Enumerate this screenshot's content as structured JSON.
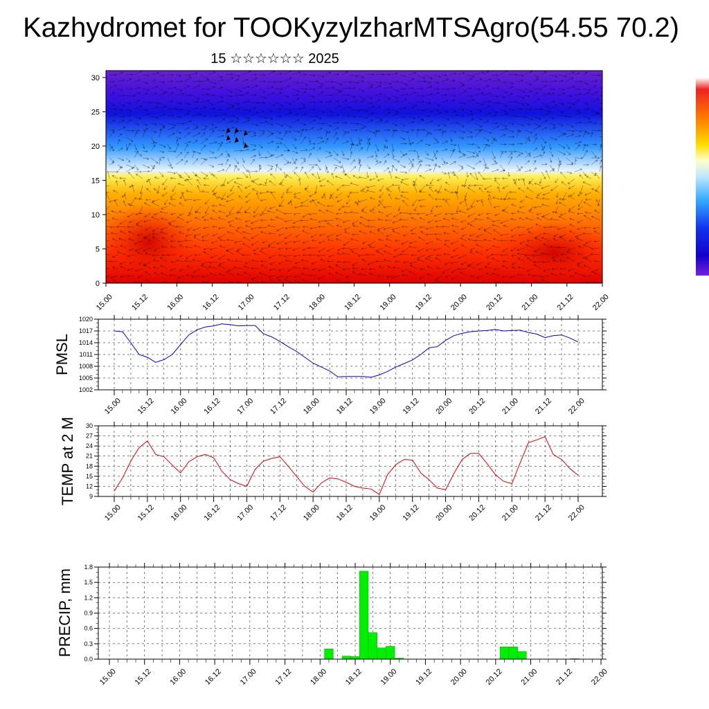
{
  "header": {
    "title": "Kazhydromet for TOOKyzylzharMTSAgro(54.55 70.2)",
    "date": "15 ☆☆☆☆☆☆ 2025"
  },
  "time_labels": [
    "15.00",
    "15.12",
    "16.00",
    "16.12",
    "17.00",
    "17.12",
    "18.00",
    "18.12",
    "19.00",
    "19.12",
    "20.00",
    "20.12",
    "21.00",
    "21.12",
    "22.00"
  ],
  "colors": {
    "pmsl_line": "#0000cc",
    "temp_line": "#e00000",
    "precip_bar": "#00ee00",
    "wind_arrows": "#000000"
  },
  "chart_data": [
    {
      "id": "wind-height-section",
      "type": "heatmap",
      "title": "",
      "xlabel": "",
      "ylabel": "",
      "y_ticks": [
        "0",
        "5",
        "10",
        "15",
        "20",
        "25",
        "30"
      ],
      "ylim": [
        0,
        31
      ],
      "x_categories": [
        "15.00",
        "15.12",
        "16.00",
        "16.12",
        "17.00",
        "17.12",
        "18.00",
        "18.12",
        "19.00",
        "19.12",
        "20.00",
        "20.12",
        "21.00",
        "21.12",
        "22.00"
      ],
      "colorbar": "red-orange-yellow-cyan-blue-purple, no tick labels",
      "overlay": "wind vectors"
    },
    {
      "id": "pmsl",
      "type": "line",
      "ylabel": "PMSL",
      "ylim": [
        1002,
        1020
      ],
      "y_ticks": [
        "1002",
        "1005",
        "1008",
        "1011",
        "1014",
        "1017",
        "1020"
      ],
      "x_step_hours": 3,
      "x_start": "15.00",
      "series": [
        {
          "values": [
            1017,
            1016.8,
            1014,
            1011,
            1010.3,
            1009,
            1009.7,
            1011,
            1013.5,
            1016,
            1017.3,
            1018,
            1018.3,
            1018.8,
            1018.6,
            1018.3,
            1018.4,
            1018.4,
            1016.3,
            1015.5,
            1014.3,
            1013,
            1011.8,
            1010.3,
            1008.8,
            1007.8,
            1006.8,
            1005.3,
            1005.4,
            1005.4,
            1005.4,
            1005.2,
            1005.8,
            1006.7,
            1007.8,
            1008.7,
            1009.6,
            1011,
            1012.7,
            1013,
            1014.6,
            1015.8,
            1016.4,
            1016.8,
            1017,
            1017.1,
            1017.4,
            1017,
            1017.1,
            1017.2,
            1016.6,
            1016.2,
            1015.3,
            1015.8,
            1016,
            1015.2,
            1014.2
          ]
        }
      ]
    },
    {
      "id": "temperature",
      "type": "line",
      "ylabel": "TEMP at 2 M",
      "ylim": [
        9,
        30
      ],
      "y_ticks": [
        "9",
        "12",
        "15",
        "18",
        "21",
        "24",
        "27",
        "30"
      ],
      "x_step_hours": 3,
      "x_start": "15.00",
      "series": [
        {
          "values": [
            10.6,
            14.5,
            19.5,
            23.5,
            25.5,
            21.5,
            20.8,
            18.3,
            16,
            19.3,
            20.8,
            21.5,
            20.5,
            16.5,
            14,
            12.8,
            12,
            17,
            19.5,
            20.3,
            20.8,
            18,
            15,
            12,
            10.3,
            13,
            14.5,
            14.2,
            13.2,
            12,
            11.5,
            11.2,
            9.6,
            15.5,
            18.5,
            20,
            19.8,
            16,
            14,
            11.5,
            11,
            15.8,
            20,
            21.8,
            21.8,
            18.8,
            15.5,
            13.5,
            12.8,
            19,
            25,
            25.8,
            26.8,
            21.5,
            20,
            17.3,
            15.3
          ]
        }
      ]
    },
    {
      "id": "precipitation",
      "type": "bar",
      "ylabel": "PRECIP, mm",
      "ylim": [
        0,
        1.8
      ],
      "y_ticks": [
        "0.0",
        "0.3",
        "0.6",
        "0.9",
        "1.2",
        "1.5",
        "1.8"
      ],
      "x_step_hours": 3,
      "x_start": "15.00",
      "series": [
        {
          "values": [
            0,
            0,
            0,
            0,
            0,
            0,
            0,
            0,
            0,
            0,
            0,
            0,
            0,
            0,
            0,
            0,
            0,
            0,
            0,
            0,
            0,
            0,
            0,
            0,
            0,
            0.2,
            0,
            0.06,
            0.05,
            1.72,
            0.52,
            0.22,
            0.25,
            0.02,
            0,
            0,
            0,
            0,
            0,
            0,
            0,
            0,
            0,
            0,
            0,
            0.24,
            0.24,
            0.15,
            0,
            0,
            0,
            0,
            0,
            0.01,
            0,
            0,
            0
          ]
        }
      ]
    }
  ]
}
